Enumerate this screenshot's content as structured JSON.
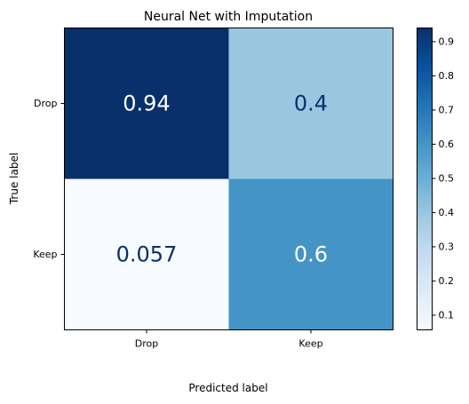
{
  "chart_data": {
    "type": "heatmap",
    "title": "Neural Net with Imputation",
    "xlabel": "Predicted label",
    "ylabel": "True label",
    "x_categories": [
      "Drop",
      "Keep"
    ],
    "y_categories": [
      "Drop",
      "Keep"
    ],
    "values": [
      [
        0.94,
        0.4
      ],
      [
        0.057,
        0.6
      ]
    ],
    "value_labels": [
      [
        "0.94",
        "0.4"
      ],
      [
        "0.057",
        "0.6"
      ]
    ],
    "colormap": "Blues",
    "colorbar": {
      "min": 0.057,
      "max": 0.94,
      "ticks": [
        0.1,
        0.2,
        0.3,
        0.4,
        0.5,
        0.6,
        0.7,
        0.8,
        0.9
      ],
      "tick_labels": [
        "0.1",
        "0.2",
        "0.3",
        "0.4",
        "0.5",
        "0.6",
        "0.7",
        "0.8",
        "0.9"
      ]
    },
    "grid": false,
    "legend": "colorbar-right"
  }
}
